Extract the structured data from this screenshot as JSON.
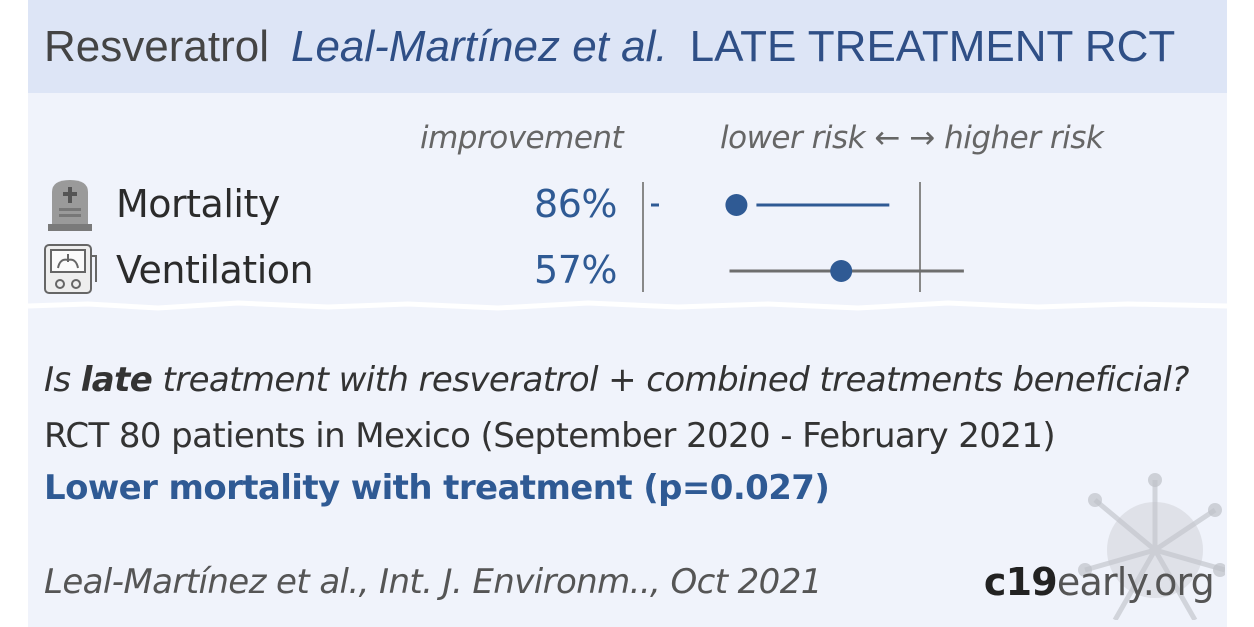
{
  "header": {
    "drug": "Resveratrol",
    "authors": "Leal-Martínez et al.",
    "study_type": "LATE TREATMENT RCT"
  },
  "columns": {
    "improvement": "improvement",
    "risk": "lower risk ← → higher risk"
  },
  "chart_data": {
    "type": "forest",
    "null_value": 1.0,
    "rows": [
      {
        "outcome": "Mortality",
        "improvement_label": "86%",
        "risk_ratio": 0.14,
        "ci_lower": 0.02,
        "ci_upper": 0.72,
        "icon": "tombstone-icon",
        "color": "#2f5a94"
      },
      {
        "outcome": "Ventilation",
        "improvement_label": "57%",
        "risk_ratio": 0.43,
        "ci_lower": 0.13,
        "ci_upper": 1.6,
        "icon": "ventilator-icon",
        "color": "#6e6e6e"
      }
    ]
  },
  "summary": {
    "question_pre": "Is ",
    "question_bold": "late",
    "question_post": " treatment with resveratrol + combined treatments beneficial?",
    "design": "RCT 80 patients in Mexico (September 2020 - February 2021)",
    "conclusion": "Lower mortality with treatment (p=0.027)"
  },
  "footer": {
    "citation": "Leal-Martínez et al., Int. J. Environm.., Oct 2021",
    "logo_bold": "c19",
    "logo_rest": "early.org"
  },
  "colors": {
    "accent": "#2f5a94",
    "header_bg": "#dde5f6",
    "card_bg": "#f0f3fb"
  }
}
